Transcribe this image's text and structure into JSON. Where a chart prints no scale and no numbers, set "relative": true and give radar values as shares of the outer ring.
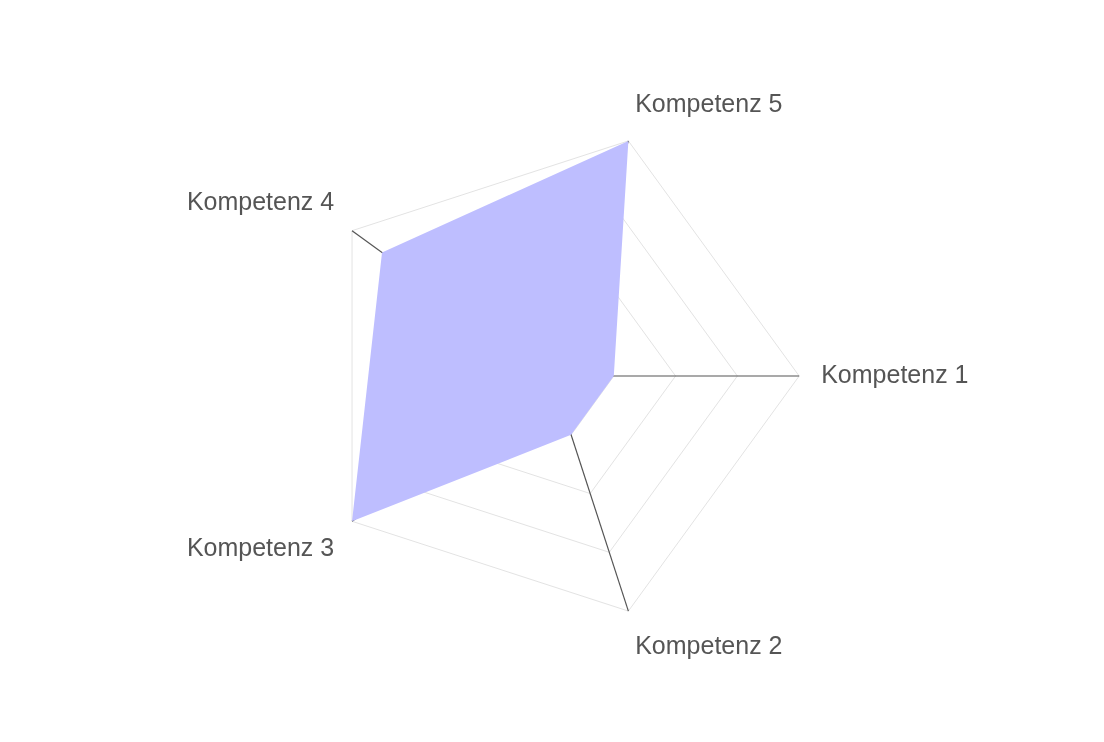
{
  "chart_data": {
    "type": "radar",
    "relative": true,
    "grid": true,
    "marker": "none",
    "categories": [
      "Kompetenz 5",
      "Kompetenz 1",
      "Kompetenz 2",
      "Kompetenz 3",
      "Kompetenz 4"
    ],
    "series": [
      {
        "color": "#bebeff",
        "values": [
          1,
          0.25,
          0.25,
          1,
          0.85
        ]
      }
    ]
  }
}
